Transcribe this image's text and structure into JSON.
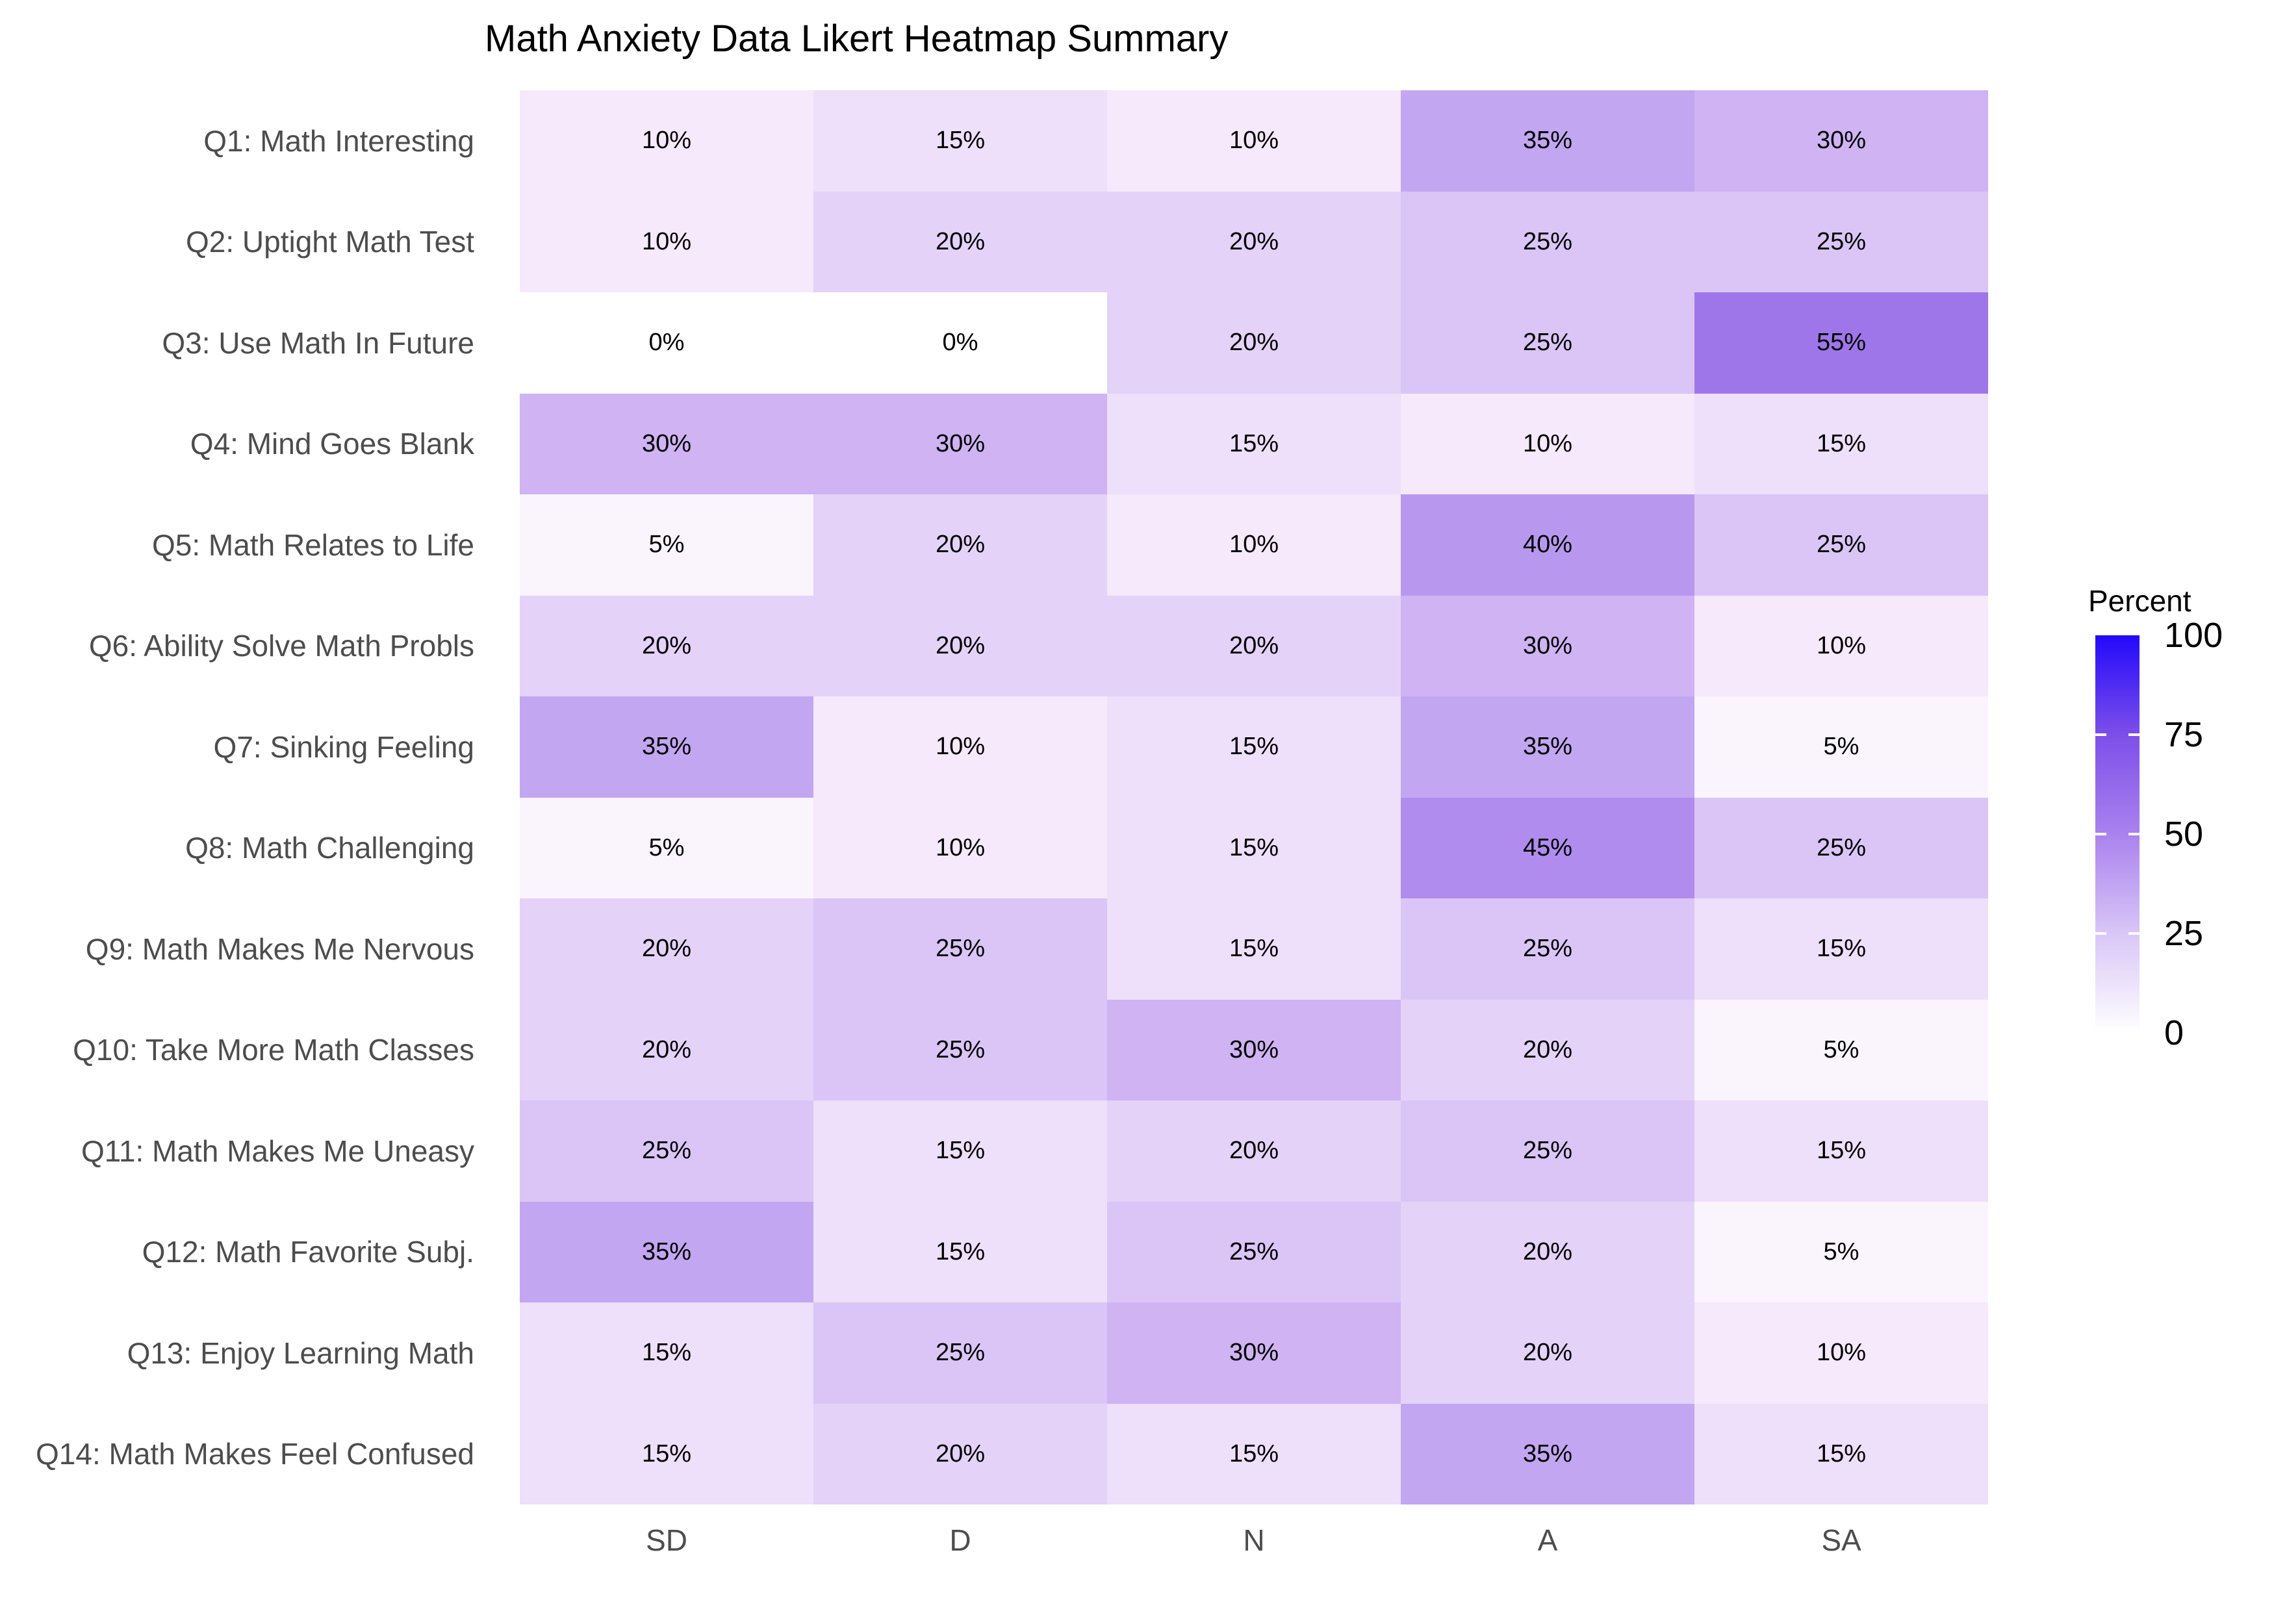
{
  "chart_data": {
    "type": "heatmap",
    "title": "Math Anxiety Data Likert Heatmap Summary",
    "x_categories": [
      "SD",
      "D",
      "N",
      "A",
      "SA"
    ],
    "rows": [
      {
        "label": "Q1: Math Interesting",
        "values": [
          10,
          15,
          10,
          35,
          30
        ]
      },
      {
        "label": "Q2: Uptight Math Test",
        "values": [
          10,
          20,
          20,
          25,
          25
        ]
      },
      {
        "label": "Q3: Use Math In Future",
        "values": [
          0,
          0,
          20,
          25,
          55
        ]
      },
      {
        "label": "Q4: Mind Goes Blank",
        "values": [
          30,
          30,
          15,
          10,
          15
        ]
      },
      {
        "label": "Q5: Math Relates to Life",
        "values": [
          5,
          20,
          10,
          40,
          25
        ]
      },
      {
        "label": "Q6: Ability Solve Math Probls",
        "values": [
          20,
          20,
          20,
          30,
          10
        ]
      },
      {
        "label": "Q7: Sinking Feeling",
        "values": [
          35,
          10,
          15,
          35,
          5
        ]
      },
      {
        "label": "Q8: Math Challenging",
        "values": [
          5,
          10,
          15,
          45,
          25
        ]
      },
      {
        "label": "Q9: Math Makes Me Nervous",
        "values": [
          20,
          25,
          15,
          25,
          15
        ]
      },
      {
        "label": "Q10: Take More Math Classes",
        "values": [
          20,
          25,
          30,
          20,
          5
        ]
      },
      {
        "label": "Q11: Math Makes Me Uneasy",
        "values": [
          25,
          15,
          20,
          25,
          15
        ]
      },
      {
        "label": "Q12: Math Favorite Subj.",
        "values": [
          35,
          15,
          25,
          20,
          5
        ]
      },
      {
        "label": "Q13: Enjoy Learning Math",
        "values": [
          15,
          25,
          30,
          20,
          10
        ]
      },
      {
        "label": "Q14: Math Makes Feel Confused",
        "values": [
          15,
          20,
          15,
          35,
          15
        ]
      }
    ],
    "cell_label_suffix": "%",
    "legend": {
      "title": "Percent",
      "ticks": [
        100,
        75,
        50,
        25,
        0
      ],
      "tick_marks": [
        75,
        50,
        25
      ],
      "range": [
        0,
        100
      ],
      "gradient_stops": [
        {
          "value": 0,
          "color": "#ffffff"
        },
        {
          "value": 25,
          "color": "#d9c6f7"
        },
        {
          "value": 50,
          "color": "#aa82ee"
        },
        {
          "value": 75,
          "color": "#7d4fe9"
        },
        {
          "value": 100,
          "color": "#2209fb"
        }
      ]
    },
    "value_colors": {
      "0": "#ffffff",
      "5": "#faf4fd",
      "10": "#f5e9fb",
      "15": "#eedffa",
      "20": "#e4d2f8",
      "25": "#dbc5f6",
      "30": "#cfb3f3",
      "35": "#c3a6f1",
      "40": "#b898ef",
      "45": "#b08cee",
      "55": "#9f76e9"
    },
    "axis_text_color": "#4d4d4d",
    "grid": false,
    "legend_position": "right"
  }
}
